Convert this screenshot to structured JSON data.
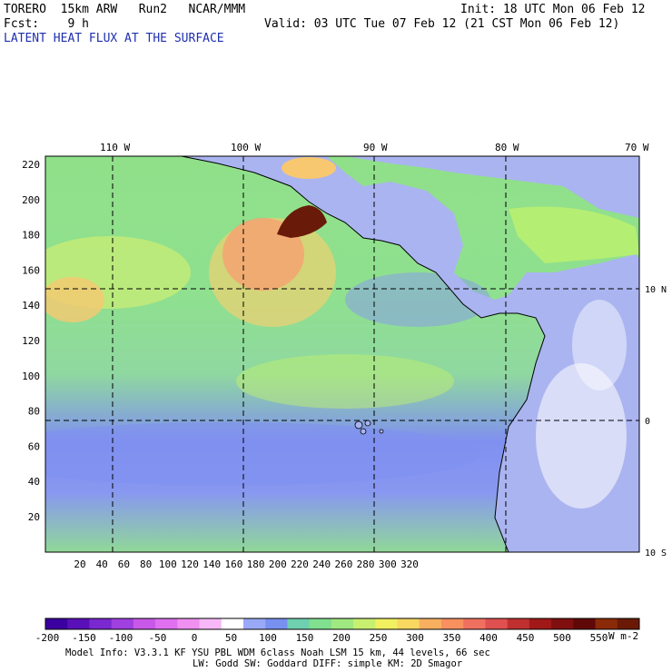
{
  "header": {
    "model_line": "TORERO  15km ARW   Run2   NCAR/MMM",
    "init": "Init: 18 UTC Mon 06 Feb 12",
    "fcst": "Fcst:    9 h",
    "valid": "Valid: 03 UTC Tue 07 Feb 12 (21 CST Mon 06 Feb 12)",
    "field_title": "LATENT HEAT FLUX AT THE SURFACE"
  },
  "map": {
    "lon_labels": [
      "110 W",
      "100 W",
      "90 W",
      "80 W",
      "70 W"
    ],
    "lat_labels": [
      "10 N",
      "0",
      "10 S"
    ],
    "x_ticks": [
      "20",
      "40",
      "60",
      "80",
      "100",
      "120",
      "140",
      "160",
      "180",
      "200",
      "220",
      "240",
      "260",
      "280",
      "300",
      "320"
    ],
    "y_ticks": [
      "220",
      "200",
      "180",
      "160",
      "140",
      "120",
      "100",
      "80",
      "60",
      "40",
      "20"
    ],
    "land_color": "#aab4f0",
    "ocean_low_color": "#7d8ef0",
    "ocean_mid_color": "#8fe08f",
    "ocean_high_color": "#c8f070",
    "hotspot_color": "#7a1a0a"
  },
  "colorbar": {
    "labels": [
      "-200",
      "-150",
      "-100",
      "-50",
      "0",
      "50",
      "100",
      "150",
      "200",
      "250",
      "300",
      "350",
      "400",
      "450",
      "500",
      "550"
    ],
    "units": "W m-2",
    "colors": [
      "#3a00a0",
      "#5a10b8",
      "#7a28d0",
      "#a040e0",
      "#c858e8",
      "#e070f0",
      "#f090f0",
      "#f8b8f8",
      "#ffffff",
      "#9aa8f8",
      "#7890f0",
      "#6fd0b0",
      "#80e090",
      "#a0e880",
      "#c8f070",
      "#f0f060",
      "#f8d860",
      "#f8b060",
      "#f89060",
      "#f07060",
      "#e05050",
      "#c03030",
      "#a01818",
      "#801010",
      "#600808",
      "#8a2a08",
      "#6a1a04"
    ]
  },
  "footer": {
    "line1": "Model Info: V3.3.1   KF     YSU PBL  WDM 6class  Noah LSM  15 km,   44 levels,   66 sec",
    "line2": "LW: Godd SW: Goddard DIFF: simple KM: 2D Smagor"
  }
}
